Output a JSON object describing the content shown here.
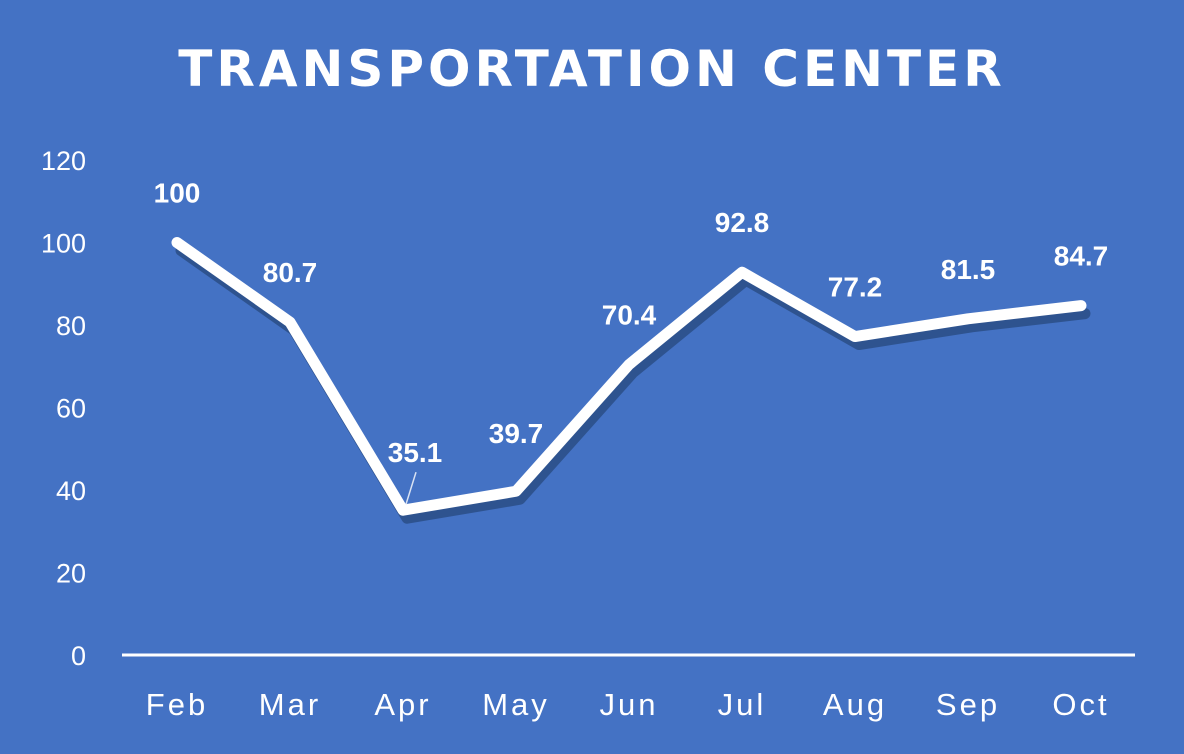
{
  "chart_data": {
    "type": "line",
    "title": "TRANSPORTATION CENTER",
    "categories": [
      "Feb",
      "Mar",
      "Apr",
      "May",
      "Jun",
      "Jul",
      "Aug",
      "Sep",
      "Oct"
    ],
    "series": [
      {
        "values": [
          100,
          80.7,
          35.1,
          39.7,
          70.4,
          92.8,
          77.2,
          81.5,
          84.7
        ]
      }
    ],
    "data_labels": [
      "100",
      "80.7",
      "35.1",
      "39.7",
      "70.4",
      "92.8",
      "77.2",
      "81.5",
      "84.7"
    ],
    "y_ticks": [
      "0",
      "20",
      "40",
      "60",
      "80",
      "100",
      "120"
    ],
    "ylim": [
      0,
      120
    ],
    "xlabel": "",
    "ylabel": "",
    "grid": false,
    "drop_lines": true,
    "legend": "none",
    "colors": {
      "background": "#4472c4",
      "line": "#ffffff",
      "shadow": "#2a4d86"
    }
  }
}
